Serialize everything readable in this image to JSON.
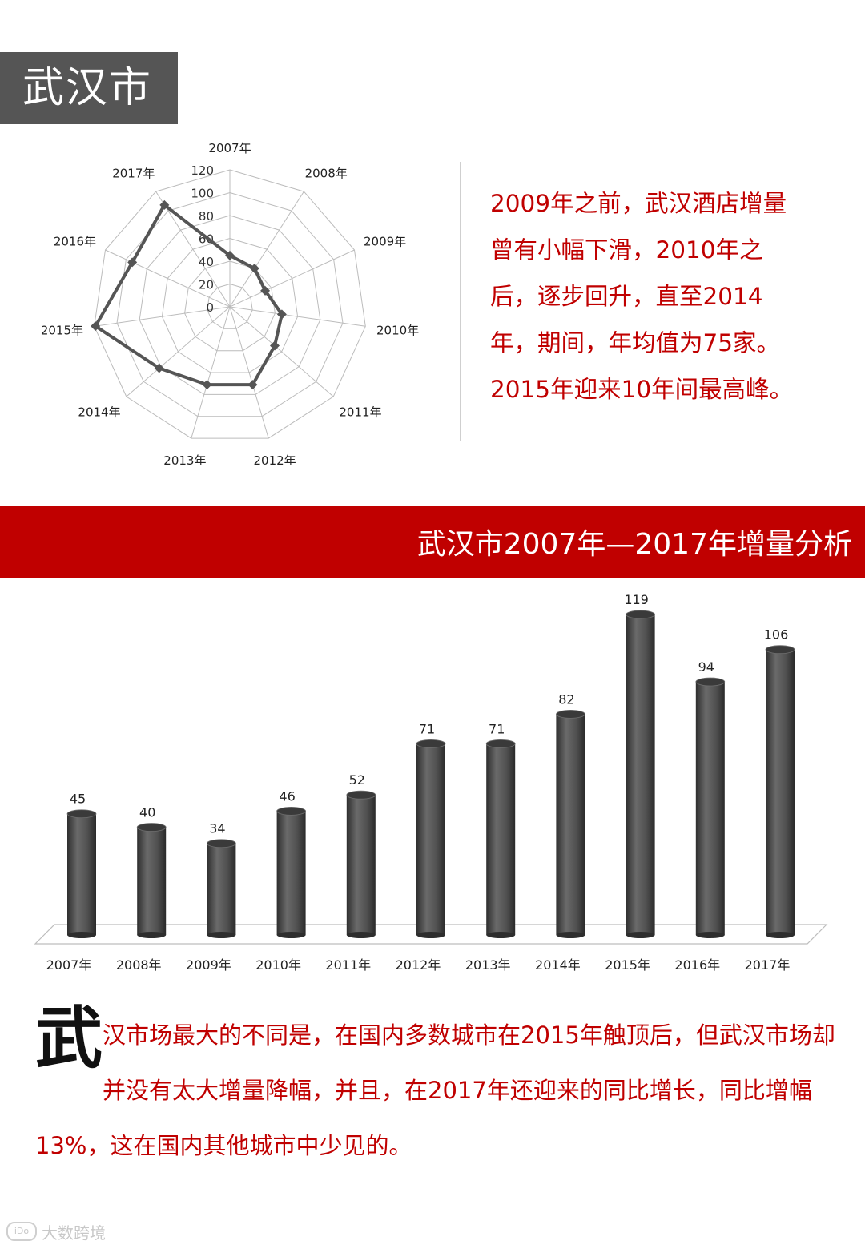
{
  "header": {
    "city_title": "武汉市"
  },
  "summary": {
    "lines": [
      "2009年之前，武汉酒店增量",
      "曾有小幅下滑，2010年之",
      "后，逐步回升，直至2014",
      "年，期间，年均值为75家。",
      "2015年迎来10年间最高峰。"
    ]
  },
  "section": {
    "banner_title": "武汉市2007年—2017年增量分析"
  },
  "analysis": {
    "drop_cap": "武",
    "text": "汉市场最大的不同是，在国内多数城市在2015年触顶后，但武汉市场却并没有太大增量降幅，并且，在2017年还迎来的同比增长，同比增幅13%，这在国内其他城市中少见的。"
  },
  "watermark": {
    "logo": "iDo",
    "text": "大数跨境"
  },
  "colors": {
    "accent": "#c00000",
    "header_bg": "#555555",
    "bar": "#555555",
    "radar_line": "#555555"
  },
  "chart_data": [
    {
      "type": "radar",
      "categories": [
        "2007年",
        "2008年",
        "2009年",
        "2010年",
        "2011年",
        "2012年",
        "2013年",
        "2014年",
        "2015年",
        "2016年",
        "2017年"
      ],
      "values": [
        45,
        40,
        34,
        46,
        52,
        71,
        71,
        82,
        119,
        94,
        106
      ],
      "axis_ticks": [
        0,
        20,
        40,
        60,
        80,
        100,
        120
      ],
      "rlim": [
        0,
        120
      ],
      "grid": true
    },
    {
      "type": "bar",
      "categories": [
        "2007年",
        "2008年",
        "2009年",
        "2010年",
        "2011年",
        "2012年",
        "2013年",
        "2014年",
        "2015年",
        "2016年",
        "2017年"
      ],
      "values": [
        45,
        40,
        34,
        46,
        52,
        71,
        71,
        82,
        119,
        94,
        106
      ],
      "data_labels": [
        "45",
        "40",
        "34",
        "46",
        "52",
        "71",
        "71",
        "82",
        "119",
        "94",
        "106"
      ],
      "ylim": [
        0,
        119
      ],
      "grid": false
    }
  ]
}
